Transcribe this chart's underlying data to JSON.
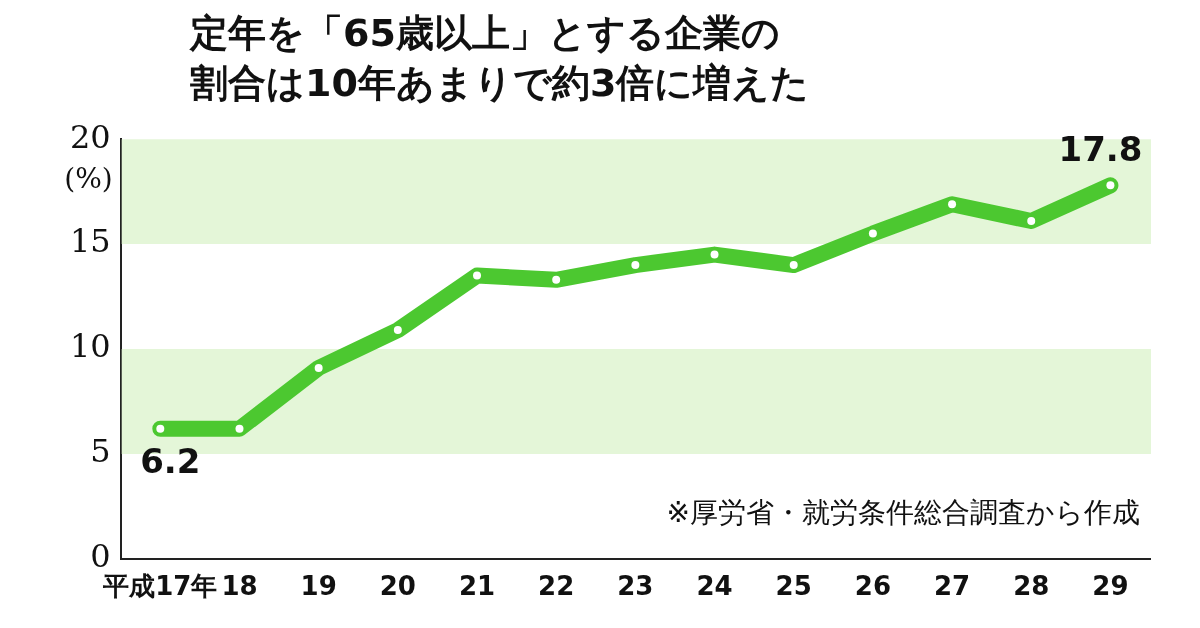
{
  "chart_data": {
    "type": "line",
    "title": "定年を「65歳以上」とする企業の割合は10年あまりで約3倍に増えた",
    "ylabel": "(%)",
    "categories": [
      "平成17年",
      "18",
      "19",
      "20",
      "21",
      "22",
      "23",
      "24",
      "25",
      "26",
      "27",
      "28",
      "29"
    ],
    "series": [
      {
        "color": "#4cc830",
        "values": [
          6.2,
          6.2,
          9.1,
          10.9,
          13.5,
          13.3,
          14.0,
          14.5,
          14.0,
          15.5,
          16.9,
          16.1,
          17.8
        ],
        "value_labels": [
          "6.2",
          null,
          null,
          null,
          null,
          null,
          null,
          null,
          null,
          null,
          null,
          null,
          "17.8"
        ]
      }
    ],
    "ylim": [
      0,
      20
    ],
    "yticks": [
      0,
      5,
      10,
      15,
      20
    ],
    "grid": false,
    "legend": false,
    "marker": "circle",
    "line_style": "solid",
    "bands": [
      {
        "axis": "y",
        "from": 5,
        "to": 10,
        "color": "#e4f6d8"
      },
      {
        "axis": "y",
        "from": 15,
        "to": 20,
        "color": "#e4f6d8"
      }
    ],
    "annotations": [
      "※厚労省・就労条件総合調査から作成"
    ]
  }
}
